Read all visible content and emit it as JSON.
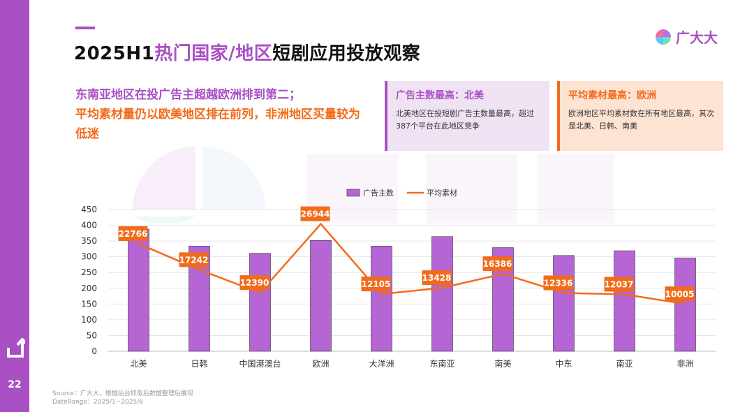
{
  "sidebar": {
    "page_number": "22",
    "back_icon": "return-arrow-icon"
  },
  "title": {
    "prefix": "2025H1",
    "highlight": "热门国家/地区",
    "suffix": "短剧应用投放观察"
  },
  "logo": {
    "text": "广大大",
    "icon": "four-petal-logo-icon"
  },
  "summary": {
    "line1": "东南亚地区在投广告主超越欧洲排到第二；",
    "line2": "平均素材量仍以欧美地区排在前列，非洲地区买量较为低迷"
  },
  "cards": [
    {
      "title": "广告主数最高：北美",
      "body": "北美地区在投短剧广告主数量最高，超过387个平台在此地区竞争"
    },
    {
      "title": "平均素材最高：欧洲",
      "body": "欧洲地区平均素材数在所有地区最高，其次是北美、日韩、南美"
    }
  ],
  "colors": {
    "accent_purple": "#a94fc4",
    "accent_orange": "#f26b1a",
    "bar_fill": "#b565d4"
  },
  "chart_data": {
    "type": "bar",
    "categories": [
      "北美",
      "日韩",
      "中国港澳台",
      "欧洲",
      "大洋洲",
      "东南亚",
      "南美",
      "中东",
      "南亚",
      "非洲"
    ],
    "series": [
      {
        "name": "广告主数",
        "type": "bar",
        "values": [
          387,
          334,
          311,
          352,
          334,
          364,
          329,
          304,
          319,
          296
        ]
      },
      {
        "name": "平均素材",
        "type": "line",
        "values": [
          22766,
          17242,
          12390,
          26944,
          12105,
          13428,
          16386,
          12336,
          12037,
          10005
        ]
      }
    ],
    "y_ticks": [
      0,
      50,
      100,
      150,
      200,
      250,
      300,
      350,
      400,
      450
    ],
    "ylim": [
      0,
      450
    ],
    "grid": true,
    "legend": "top-center"
  },
  "footer": {
    "source": "Source：广大大，根据后台抓取后数据整理后展现",
    "daterange": "DateRange：2025/1~2025/6"
  }
}
